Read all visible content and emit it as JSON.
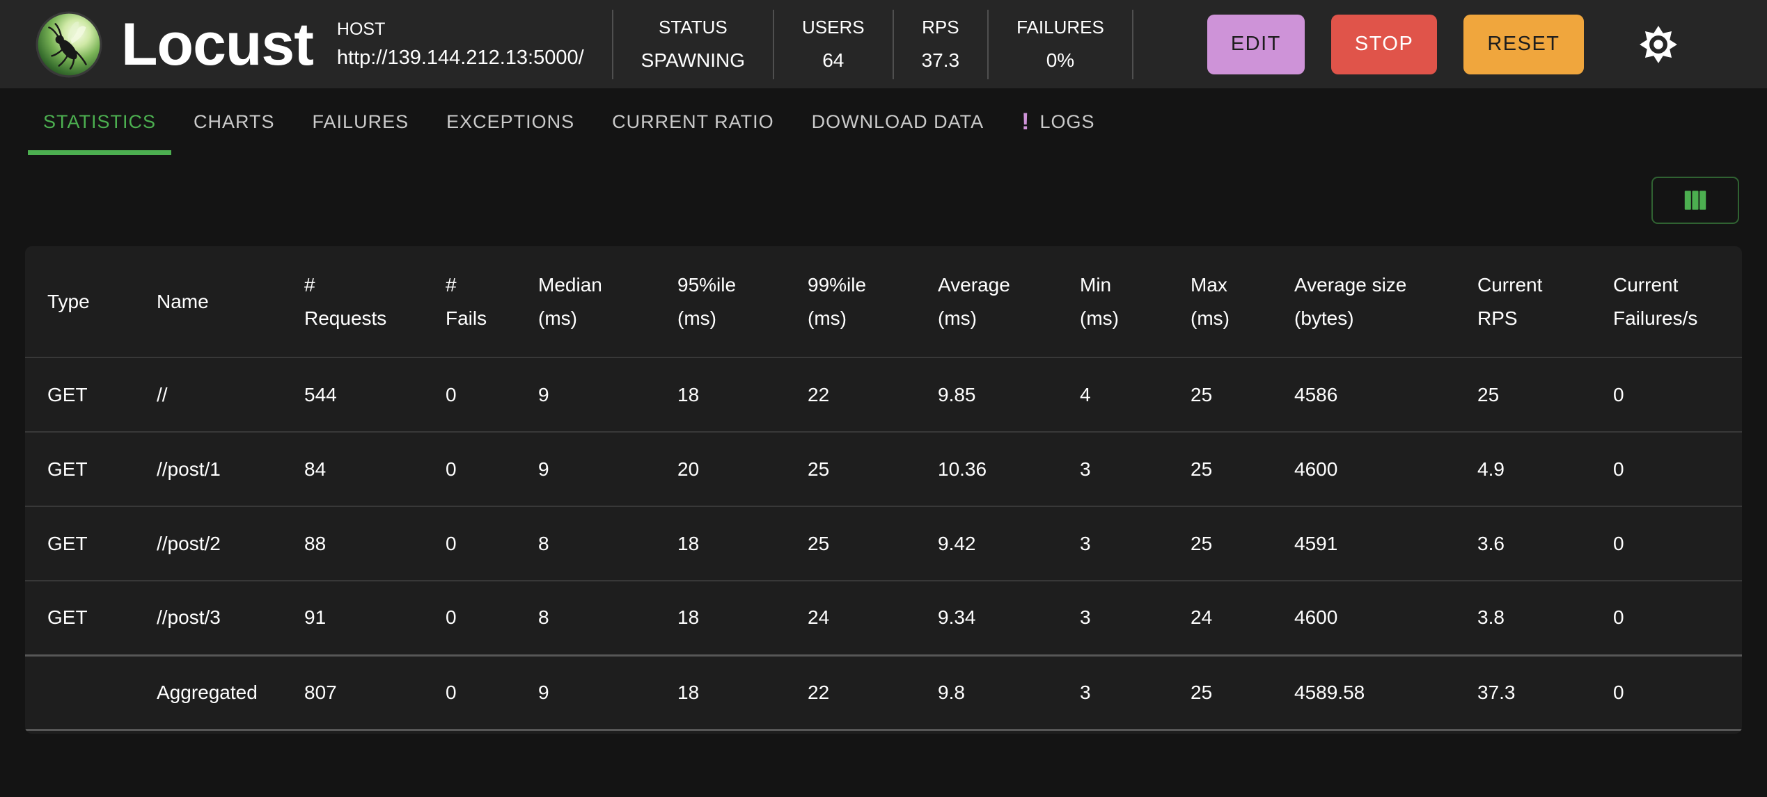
{
  "header": {
    "brand_title": "Locust",
    "host": {
      "label": "HOST",
      "url": "http://139.144.212.13:5000/"
    },
    "stats": [
      {
        "label": "STATUS",
        "value": "SPAWNING"
      },
      {
        "label": "USERS",
        "value": "64"
      },
      {
        "label": "RPS",
        "value": "37.3"
      },
      {
        "label": "FAILURES",
        "value": "0%"
      }
    ],
    "actions": {
      "edit": "EDIT",
      "stop": "STOP",
      "reset": "RESET"
    }
  },
  "tabs": [
    {
      "label": "STATISTICS",
      "active": true
    },
    {
      "label": "CHARTS"
    },
    {
      "label": "FAILURES"
    },
    {
      "label": "EXCEPTIONS"
    },
    {
      "label": "CURRENT RATIO"
    },
    {
      "label": "DOWNLOAD DATA"
    },
    {
      "label": "LOGS",
      "badge": "!"
    }
  ],
  "colors": {
    "accent_green": "#4caf50",
    "edit_button": "#ce93d8",
    "stop_button": "#e0544a",
    "reset_button": "#f0a63d",
    "logs_badge": "#ce93d8"
  },
  "table": {
    "columns": [
      {
        "key": "type",
        "line1": "Type",
        "line2": ""
      },
      {
        "key": "name",
        "line1": "Name",
        "line2": ""
      },
      {
        "key": "requests",
        "line1": "#",
        "line2": "Requests"
      },
      {
        "key": "fails",
        "line1": "#",
        "line2": "Fails"
      },
      {
        "key": "median",
        "line1": "Median",
        "line2": "(ms)"
      },
      {
        "key": "p95",
        "line1": "95%ile",
        "line2": "(ms)"
      },
      {
        "key": "p99",
        "line1": "99%ile",
        "line2": "(ms)"
      },
      {
        "key": "average",
        "line1": "Average",
        "line2": "(ms)"
      },
      {
        "key": "min",
        "line1": "Min",
        "line2": "(ms)"
      },
      {
        "key": "max",
        "line1": "Max",
        "line2": "(ms)"
      },
      {
        "key": "average-size",
        "line1": "Average size",
        "line2": "(bytes)"
      },
      {
        "key": "current-rps",
        "line1": "Current",
        "line2": "RPS"
      },
      {
        "key": "current-failures",
        "line1": "Current",
        "line2": "Failures/s"
      }
    ],
    "rows": [
      [
        "GET",
        "//",
        "544",
        "0",
        "9",
        "18",
        "22",
        "9.85",
        "4",
        "25",
        "4586",
        "25",
        "0"
      ],
      [
        "GET",
        "//post/1",
        "84",
        "0",
        "9",
        "20",
        "25",
        "10.36",
        "3",
        "25",
        "4600",
        "4.9",
        "0"
      ],
      [
        "GET",
        "//post/2",
        "88",
        "0",
        "8",
        "18",
        "25",
        "9.42",
        "3",
        "25",
        "4591",
        "3.6",
        "0"
      ],
      [
        "GET",
        "//post/3",
        "91",
        "0",
        "8",
        "18",
        "24",
        "9.34",
        "3",
        "24",
        "4600",
        "3.8",
        "0"
      ],
      [
        "",
        "Aggregated",
        "807",
        "0",
        "9",
        "18",
        "22",
        "9.8",
        "3",
        "25",
        "4589.58",
        "37.3",
        "0"
      ]
    ]
  }
}
